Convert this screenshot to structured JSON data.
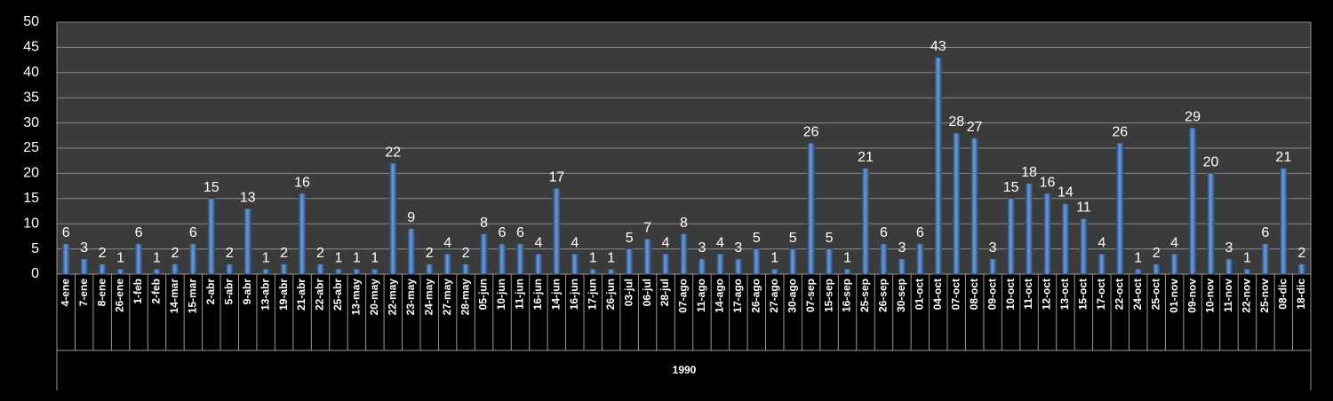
{
  "chart_data": {
    "type": "bar",
    "x_group_label": "1990",
    "categories": [
      "4-ene",
      "7-ene",
      "8-ene",
      "26-ene",
      "1-feb",
      "2-feb",
      "14-mar",
      "15-mar",
      "2-abr",
      "5-abr",
      "9-abr",
      "13-abr",
      "19-abr",
      "21-abr",
      "22-abr",
      "25-abr",
      "13-may",
      "20-may",
      "22-may",
      "23-may",
      "24-may",
      "27-may",
      "28-may",
      "05-jun",
      "10-jun",
      "11-jun",
      "16-jun",
      "14-jun",
      "16-jun",
      "17-jun",
      "26-jun",
      "03-jul",
      "06-jul",
      "28-jul",
      "07-ago",
      "11-ago",
      "14-ago",
      "17-ago",
      "26-ago",
      "27-ago",
      "30-ago",
      "07-sep",
      "15-sep",
      "16-sep",
      "25-sep",
      "26-sep",
      "30-sep",
      "01-oct",
      "04-oct",
      "07-oct",
      "08-oct",
      "09-oct",
      "10-oct",
      "11-oct",
      "12-oct",
      "13-oct",
      "15-oct",
      "17-oct",
      "22-oct",
      "24-oct",
      "25-oct",
      "01-nov",
      "09-nov",
      "10-nov",
      "11-nov",
      "22-nov",
      "25-nov",
      "08-dic",
      "18-dic"
    ],
    "values": [
      6,
      3,
      2,
      1,
      6,
      1,
      2,
      6,
      15,
      2,
      13,
      1,
      2,
      16,
      2,
      1,
      1,
      1,
      22,
      9,
      2,
      4,
      2,
      8,
      6,
      6,
      4,
      17,
      4,
      1,
      1,
      5,
      7,
      4,
      8,
      3,
      4,
      3,
      5,
      1,
      5,
      26,
      5,
      1,
      21,
      6,
      3,
      6,
      43,
      28,
      27,
      3,
      15,
      18,
      16,
      14,
      11,
      4,
      26,
      1,
      2,
      4,
      29,
      20,
      3,
      1,
      6,
      21,
      2
    ],
    "color": "#4f81bd",
    "ylim": [
      0,
      50
    ],
    "yticks": [
      0,
      5,
      10,
      15,
      20,
      25,
      30,
      35,
      40,
      45,
      50
    ],
    "grid": true
  }
}
